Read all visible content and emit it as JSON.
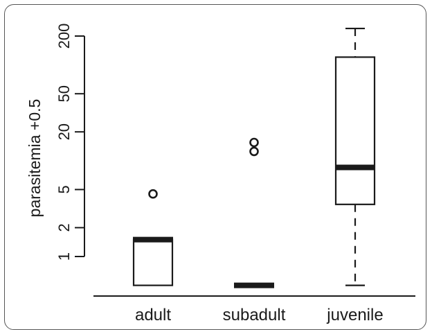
{
  "chart_data": {
    "type": "boxplot",
    "title": "",
    "ylabel": "parasitemia +0.5",
    "xlabel": "",
    "y_scale": "log",
    "y_ticks": [
      1,
      2,
      5,
      20,
      50,
      200
    ],
    "y_tick_labels": [
      "1",
      "2",
      "5",
      "20",
      "50",
      "200"
    ],
    "ylim": [
      0.4,
      300
    ],
    "categories": [
      "adult",
      "subadult",
      "juvenile"
    ],
    "boxes": [
      {
        "category": "adult",
        "whisker_low": 0.5,
        "q1": 0.5,
        "median": 1.5,
        "q3": 1.5,
        "whisker_high": 1.5,
        "outliers": [
          4.5
        ]
      },
      {
        "category": "subadult",
        "whisker_low": 0.5,
        "q1": 0.5,
        "median": 0.5,
        "q3": 0.5,
        "whisker_high": 0.5,
        "outliers": [
          12.5,
          15.5
        ]
      },
      {
        "category": "juvenile",
        "whisker_low": 0.5,
        "q1": 3.5,
        "median": 8.5,
        "q3": 120.5,
        "whisker_high": 240,
        "outliers": []
      }
    ],
    "grid": false,
    "legend": "none"
  },
  "colors": {
    "ink": "#1a1a1a",
    "frame": "#555555",
    "background": "#ffffff"
  }
}
